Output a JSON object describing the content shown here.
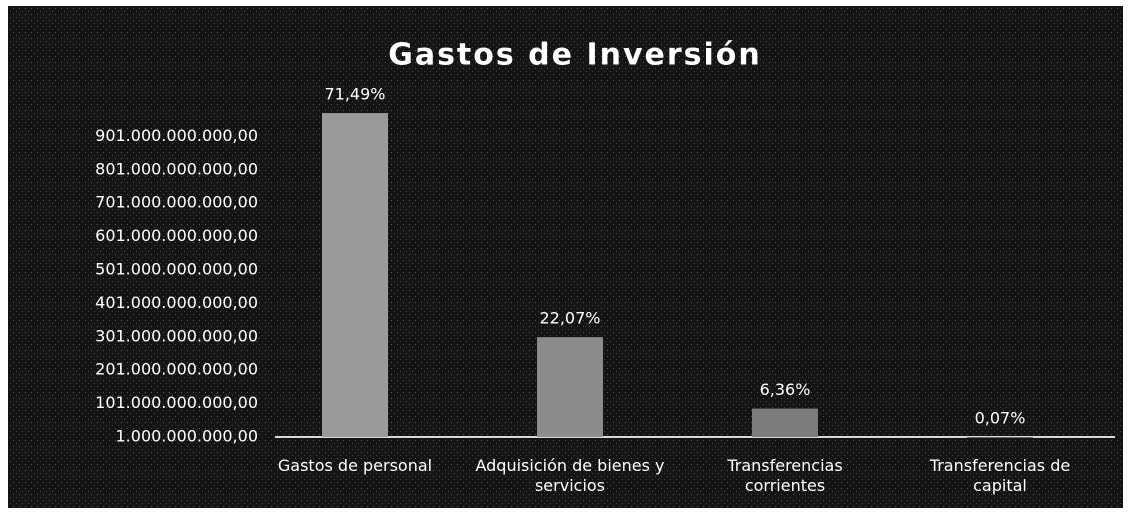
{
  "chart_data": {
    "type": "bar",
    "title": "Gastos de Inversión",
    "categories": [
      "Gastos de personal",
      "Adquisición de bienes y servicios",
      "Transferencias corrientes",
      "Transferencias de capital"
    ],
    "values": [
      971000000000,
      300000000000,
      86000000000,
      950000000
    ],
    "share_labels": [
      "71,49%",
      "22,07%",
      "6,36%",
      "0,07%"
    ],
    "color": "#9a9a9a",
    "ylim": [
      1000000000,
      1010000000000
    ],
    "yticks": [
      {
        "value": 1000000000,
        "label": "1.000.000.000,00"
      },
      {
        "value": 101000000000,
        "label": "101.000.000.000,00"
      },
      {
        "value": 201000000000,
        "label": "201.000.000.000,00"
      },
      {
        "value": 301000000000,
        "label": "301.000.000.000,00"
      },
      {
        "value": 401000000000,
        "label": "401.000.000.000,00"
      },
      {
        "value": 501000000000,
        "label": "501.000.000.000,00"
      },
      {
        "value": 601000000000,
        "label": "601.000.000.000,00"
      },
      {
        "value": 701000000000,
        "label": "701.000.000.000,00"
      },
      {
        "value": 801000000000,
        "label": "801.000.000.000,00"
      },
      {
        "value": 901000000000,
        "label": "901.000.000.000,00"
      }
    ],
    "grid": false
  }
}
